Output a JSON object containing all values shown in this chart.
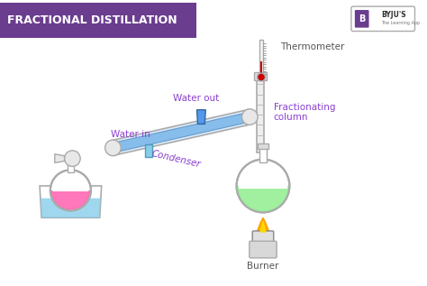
{
  "title": "FRACTIONAL DISTILLATION",
  "title_bg": "#6a3d8f",
  "title_color": "#ffffff",
  "bg_color": "#ffffff",
  "labels": {
    "thermometer": "Thermometer",
    "water_out": "Water out",
    "water_in": "Water in",
    "condenser": "Condenser",
    "fractionating": "Fractionating\ncolumn",
    "burner": "Burner"
  },
  "label_color": "#8B3FCF",
  "label_color_dark": "#555555",
  "label_fontsize": 7.5,
  "condenser_color": "#6aade4",
  "flask_right_liquid": "#90EE90",
  "flask_left_liquid_pink": "#FF69B4",
  "flask_left_liquid_blue": "#87CEEB",
  "thermometer_liquid": "#cc0000",
  "burner_flame_orange": "#FFA500",
  "burner_flame_yellow": "#FFD700"
}
